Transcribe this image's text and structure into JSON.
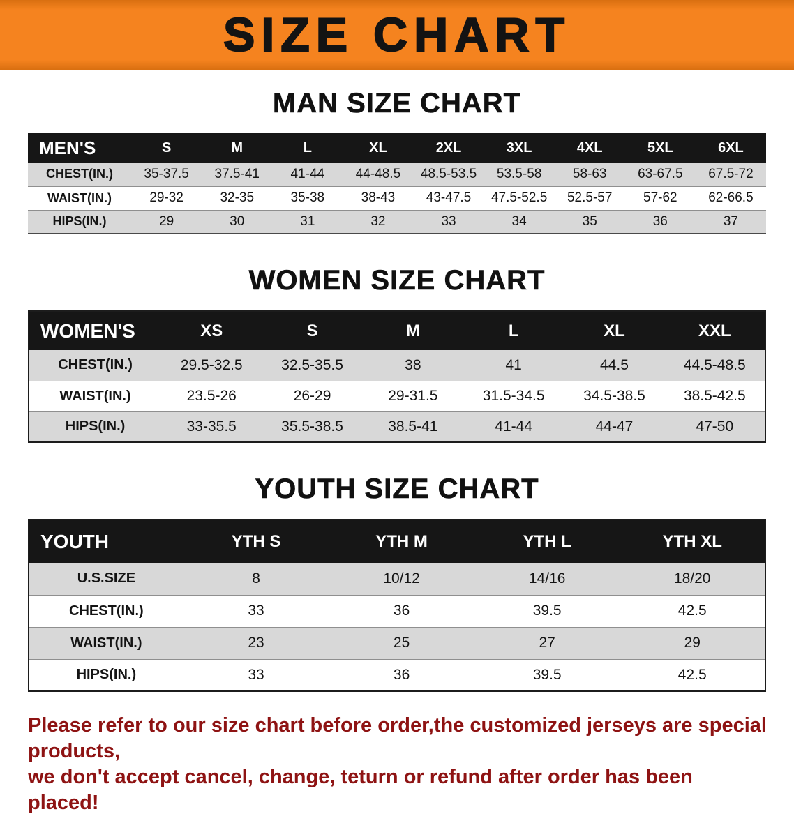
{
  "banner": {
    "title": "SIZE CHART"
  },
  "sections": {
    "men": {
      "heading": "MAN SIZE CHART",
      "table": {
        "header": [
          "MEN'S",
          "S",
          "M",
          "L",
          "XL",
          "2XL",
          "3XL",
          "4XL",
          "5XL",
          "6XL"
        ],
        "rows": [
          [
            "CHEST(IN.)",
            "35-37.5",
            "37.5-41",
            "41-44",
            "44-48.5",
            "48.5-53.5",
            "53.5-58",
            "58-63",
            "63-67.5",
            "67.5-72"
          ],
          [
            "WAIST(IN.)",
            "29-32",
            "32-35",
            "35-38",
            "38-43",
            "43-47.5",
            "47.5-52.5",
            "52.5-57",
            "57-62",
            "62-66.5"
          ],
          [
            "HIPS(IN.)",
            "29",
            "30",
            "31",
            "32",
            "33",
            "34",
            "35",
            "36",
            "37"
          ]
        ]
      }
    },
    "women": {
      "heading": "WOMEN SIZE CHART",
      "table": {
        "header": [
          "WOMEN'S",
          "XS",
          "S",
          "M",
          "L",
          "XL",
          "XXL"
        ],
        "rows": [
          [
            "CHEST(IN.)",
            "29.5-32.5",
            "32.5-35.5",
            "38",
            "41",
            "44.5",
            "44.5-48.5"
          ],
          [
            "WAIST(IN.)",
            "23.5-26",
            "26-29",
            "29-31.5",
            "31.5-34.5",
            "34.5-38.5",
            "38.5-42.5"
          ],
          [
            "HIPS(IN.)",
            "33-35.5",
            "35.5-38.5",
            "38.5-41",
            "41-44",
            "44-47",
            "47-50"
          ]
        ]
      }
    },
    "youth": {
      "heading": "YOUTH SIZE CHART",
      "table": {
        "header": [
          "YOUTH",
          "YTH S",
          "YTH M",
          "YTH L",
          "YTH XL"
        ],
        "rows": [
          [
            "U.S.SIZE",
            "8",
            "10/12",
            "14/16",
            "18/20"
          ],
          [
            "CHEST(IN.)",
            "33",
            "36",
            "39.5",
            "42.5"
          ],
          [
            "WAIST(IN.)",
            "23",
            "25",
            "27",
            "29"
          ],
          [
            "HIPS(IN.)",
            "33",
            "36",
            "39.5",
            "42.5"
          ]
        ]
      }
    }
  },
  "disclaimer": {
    "line1": "Please refer to our size chart before order,the customized jerseys are special products,",
    "line2": "we don't accept cancel, change, teturn or refund after order has been placed!"
  },
  "colors": {
    "banner": "#f5831f",
    "banner_edge": "#d96f10",
    "table_header": "#161616",
    "stripe": "#d8d8d8",
    "disclaimer": "#8e1313"
  }
}
